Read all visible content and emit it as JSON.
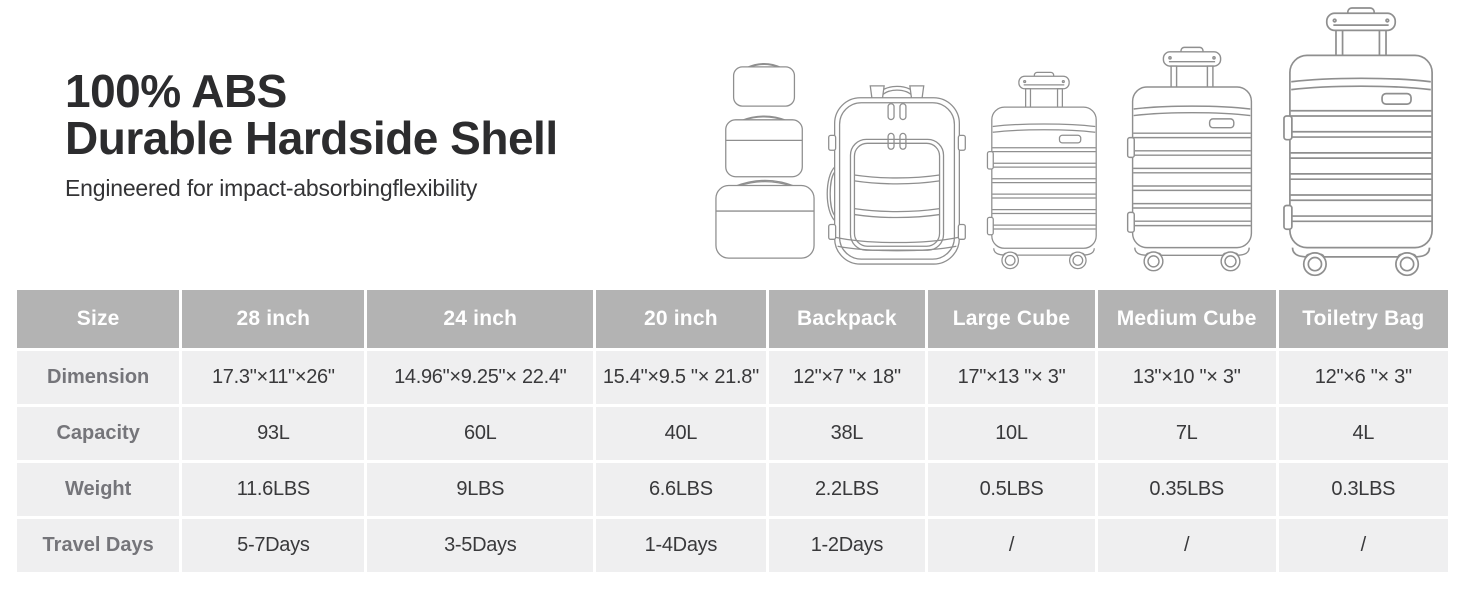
{
  "hero": {
    "title_line1": "100% ABS",
    "title_line2": "Durable Hardside Shell",
    "subtitle": "Engineered for impact-absorbingflexibility"
  },
  "table": {
    "header": [
      "Size",
      "28 inch",
      "24 inch",
      "20 inch",
      "Backpack",
      "Large Cube",
      "Medium Cube",
      "Toiletry Bag"
    ],
    "rows": [
      {
        "label": "Dimension",
        "values": [
          "17.3\"×11\"×26\"",
          "14.96\"×9.25\"× 22.4\"",
          "15.4\"×9.5 \"× 21.8\"",
          "12\"×7 \"× 18\"",
          "17\"×13 \"× 3\"",
          "13\"×10 \"× 3\"",
          "12\"×6 \"× 3\""
        ]
      },
      {
        "label": "Capacity",
        "values": [
          "93L",
          "60L",
          "40L",
          "38L",
          "10L",
          "7L",
          "4L"
        ]
      },
      {
        "label": "Weight",
        "values": [
          "11.6LBS",
          "9LBS",
          "6.6LBS",
          "2.2LBS",
          "0.5LBS",
          "0.35LBS",
          "0.3LBS"
        ]
      },
      {
        "label": "Travel Days",
        "values": [
          "5-7Days",
          "3-5Days",
          "1-4Days",
          "1-2Days",
          "/",
          "/",
          "/"
        ]
      }
    ]
  },
  "illustrations": [
    "toiletry-bag",
    "medium-cube",
    "large-cube",
    "backpack",
    "20-inch-suitcase",
    "24-inch-suitcase",
    "28-inch-suitcase"
  ],
  "colors": {
    "table_header_bg": "#b3b3b3",
    "table_header_text": "#ffffff",
    "table_row_bg": "#efeff0",
    "row_label_text": "#75757a",
    "cell_text": "#39393b",
    "title_text": "#2c2c2e",
    "line_art": "#8f8f8f"
  }
}
